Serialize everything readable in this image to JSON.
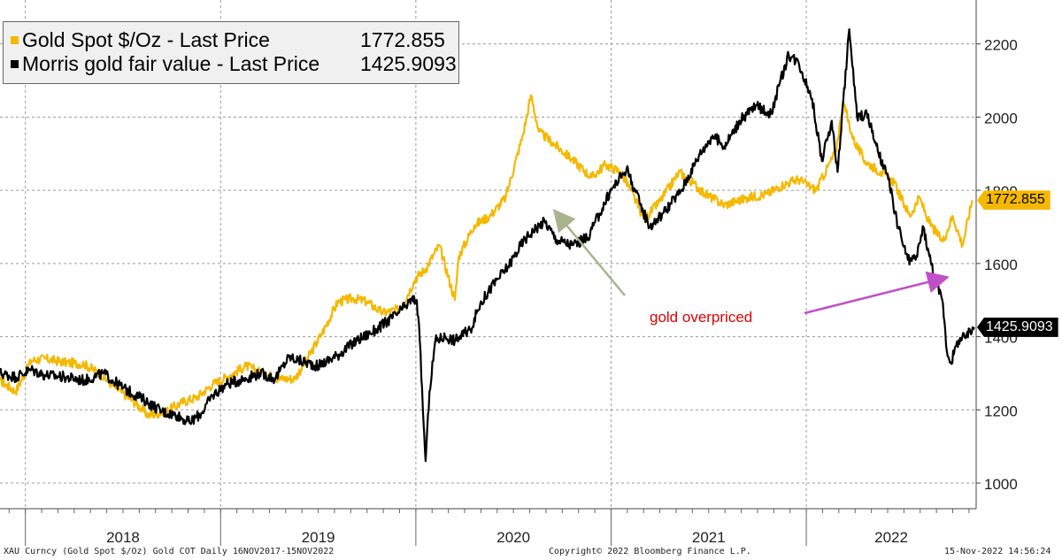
{
  "chart_data": {
    "type": "line",
    "x_start": "2017-11-16",
    "x_end": "2022-11-15",
    "xlim": [
      2017.87,
      2022.87
    ],
    "ylim": [
      930,
      2320
    ],
    "x_tick_labels": [
      "2018",
      "2019",
      "2020",
      "2021",
      "2022"
    ],
    "y_ticks": [
      1000,
      1200,
      1400,
      1600,
      1800,
      2000,
      2200
    ],
    "series": [
      {
        "name": "Gold Spot $/Oz - Last Price",
        "color": "#f5b800",
        "last_value": "1772.855",
        "points": [
          [
            2017.87,
            1280
          ],
          [
            2017.95,
            1250
          ],
          [
            2018.03,
            1335
          ],
          [
            2018.1,
            1340
          ],
          [
            2018.2,
            1330
          ],
          [
            2018.3,
            1325
          ],
          [
            2018.38,
            1300
          ],
          [
            2018.45,
            1265
          ],
          [
            2018.55,
            1225
          ],
          [
            2018.63,
            1185
          ],
          [
            2018.72,
            1195
          ],
          [
            2018.8,
            1220
          ],
          [
            2018.88,
            1235
          ],
          [
            2018.96,
            1270
          ],
          [
            2019.05,
            1295
          ],
          [
            2019.13,
            1320
          ],
          [
            2019.22,
            1300
          ],
          [
            2019.3,
            1285
          ],
          [
            2019.38,
            1285
          ],
          [
            2019.45,
            1345
          ],
          [
            2019.52,
            1410
          ],
          [
            2019.6,
            1495
          ],
          [
            2019.68,
            1505
          ],
          [
            2019.75,
            1495
          ],
          [
            2019.83,
            1465
          ],
          [
            2019.92,
            1475
          ],
          [
            2020.0,
            1560
          ],
          [
            2020.05,
            1585
          ],
          [
            2020.12,
            1650
          ],
          [
            2020.2,
            1500
          ],
          [
            2020.22,
            1620
          ],
          [
            2020.3,
            1705
          ],
          [
            2020.38,
            1730
          ],
          [
            2020.46,
            1780
          ],
          [
            2020.55,
            1955
          ],
          [
            2020.59,
            2060
          ],
          [
            2020.63,
            1960
          ],
          [
            2020.7,
            1930
          ],
          [
            2020.8,
            1885
          ],
          [
            2020.9,
            1835
          ],
          [
            2020.97,
            1870
          ],
          [
            2021.05,
            1850
          ],
          [
            2021.1,
            1800
          ],
          [
            2021.17,
            1720
          ],
          [
            2021.25,
            1770
          ],
          [
            2021.35,
            1850
          ],
          [
            2021.42,
            1820
          ],
          [
            2021.48,
            1790
          ],
          [
            2021.58,
            1760
          ],
          [
            2021.7,
            1780
          ],
          [
            2021.8,
            1790
          ],
          [
            2021.88,
            1815
          ],
          [
            2021.96,
            1830
          ],
          [
            2022.05,
            1800
          ],
          [
            2022.15,
            1905
          ],
          [
            2022.19,
            2040
          ],
          [
            2022.24,
            1940
          ],
          [
            2022.3,
            1880
          ],
          [
            2022.38,
            1850
          ],
          [
            2022.45,
            1820
          ],
          [
            2022.53,
            1730
          ],
          [
            2022.58,
            1780
          ],
          [
            2022.63,
            1710
          ],
          [
            2022.7,
            1660
          ],
          [
            2022.75,
            1730
          ],
          [
            2022.8,
            1650
          ],
          [
            2022.85,
            1772.855
          ]
        ]
      },
      {
        "name": "Morris gold fair value - Last Price",
        "color": "#000000",
        "last_value": "1425.9093",
        "points": [
          [
            2017.87,
            1300
          ],
          [
            2017.95,
            1290
          ],
          [
            2018.03,
            1310
          ],
          [
            2018.1,
            1295
          ],
          [
            2018.2,
            1290
          ],
          [
            2018.3,
            1280
          ],
          [
            2018.4,
            1300
          ],
          [
            2018.5,
            1260
          ],
          [
            2018.6,
            1230
          ],
          [
            2018.7,
            1195
          ],
          [
            2018.78,
            1185
          ],
          [
            2018.84,
            1165
          ],
          [
            2018.9,
            1190
          ],
          [
            2018.96,
            1240
          ],
          [
            2019.03,
            1270
          ],
          [
            2019.12,
            1285
          ],
          [
            2019.2,
            1300
          ],
          [
            2019.28,
            1285
          ],
          [
            2019.35,
            1345
          ],
          [
            2019.4,
            1335
          ],
          [
            2019.5,
            1320
          ],
          [
            2019.6,
            1350
          ],
          [
            2019.7,
            1390
          ],
          [
            2019.8,
            1420
          ],
          [
            2019.9,
            1460
          ],
          [
            2019.95,
            1485
          ],
          [
            2019.98,
            1500
          ],
          [
            2020.005,
            1500
          ],
          [
            2020.02,
            1390
          ],
          [
            2020.04,
            1160
          ],
          [
            2020.05,
            1060
          ],
          [
            2020.07,
            1250
          ],
          [
            2020.1,
            1390
          ],
          [
            2020.15,
            1400
          ],
          [
            2020.2,
            1390
          ],
          [
            2020.28,
            1420
          ],
          [
            2020.33,
            1490
          ],
          [
            2020.4,
            1545
          ],
          [
            2020.47,
            1590
          ],
          [
            2020.55,
            1660
          ],
          [
            2020.6,
            1690
          ],
          [
            2020.66,
            1715
          ],
          [
            2020.72,
            1665
          ],
          [
            2020.8,
            1650
          ],
          [
            2020.88,
            1670
          ],
          [
            2020.94,
            1735
          ],
          [
            2021.0,
            1800
          ],
          [
            2021.08,
            1860
          ],
          [
            2021.15,
            1760
          ],
          [
            2021.2,
            1700
          ],
          [
            2021.27,
            1740
          ],
          [
            2021.36,
            1800
          ],
          [
            2021.45,
            1895
          ],
          [
            2021.52,
            1950
          ],
          [
            2021.58,
            1920
          ],
          [
            2021.66,
            1990
          ],
          [
            2021.74,
            2030
          ],
          [
            2021.82,
            2010
          ],
          [
            2021.86,
            2085
          ],
          [
            2021.91,
            2170
          ],
          [
            2021.96,
            2150
          ],
          [
            2022.03,
            2050
          ],
          [
            2022.08,
            1880
          ],
          [
            2022.13,
            1990
          ],
          [
            2022.16,
            1850
          ],
          [
            2022.22,
            2240
          ],
          [
            2022.26,
            2000
          ],
          [
            2022.31,
            2010
          ],
          [
            2022.37,
            1900
          ],
          [
            2022.42,
            1830
          ],
          [
            2022.47,
            1700
          ],
          [
            2022.52,
            1610
          ],
          [
            2022.56,
            1610
          ],
          [
            2022.6,
            1700
          ],
          [
            2022.63,
            1620
          ],
          [
            2022.66,
            1560
          ],
          [
            2022.7,
            1490
          ],
          [
            2022.72,
            1360
          ],
          [
            2022.74,
            1330
          ],
          [
            2022.78,
            1390
          ],
          [
            2022.82,
            1400
          ],
          [
            2022.86,
            1425.9093
          ]
        ]
      }
    ],
    "annotations": [
      {
        "text": "gold overpriced",
        "color": "#e00000"
      }
    ]
  },
  "legend": {
    "items": [
      {
        "label": "Gold Spot $/Oz - Last Price",
        "value": "1772.855",
        "color": "#f5b800"
      },
      {
        "label": "Morris gold fair value - Last Price",
        "value": "1425.9093",
        "color": "#000000"
      }
    ]
  },
  "badges": {
    "gold": {
      "text": "1772.855",
      "bg": "#f5b800",
      "fg": "#000000"
    },
    "morris": {
      "text": "1425.9093",
      "bg": "#000000",
      "fg": "#ffffff"
    }
  },
  "footer": {
    "left": "XAU Curncy (Gold Spot  $/Oz) Gold COT  Daily 16NOV2017-15NOV2022",
    "center": "Copyright© 2022 Bloomberg Finance L.P.",
    "right": "15-Nov-2022 14:56:24"
  }
}
